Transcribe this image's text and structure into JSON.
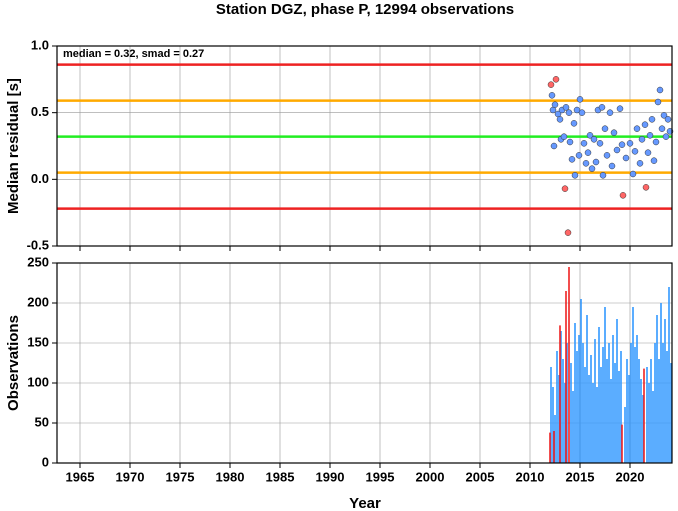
{
  "chart_data": [
    {
      "type": "scatter",
      "title": "Station DGZ, phase P, 12994 observations",
      "annotation": "median = 0.32, smad = 0.27",
      "ylabel": "Median residual [s]",
      "xlim": [
        1962.7,
        2024.2
      ],
      "xticks": [
        1965,
        1970,
        1975,
        1980,
        1985,
        1990,
        1995,
        2000,
        2005,
        2010,
        2015,
        2020
      ],
      "ylim": [
        -0.5,
        1.0
      ],
      "yticks": [
        -0.5,
        {
          "value": 0,
          "label": "0.0"
        },
        0.5,
        {
          "value": 1,
          "label": "1.0"
        }
      ],
      "grid": true,
      "hlines": [
        {
          "value": 0.86,
          "color": "#ee2222"
        },
        {
          "value": 0.59,
          "color": "#ffaa00"
        },
        {
          "value": 0.32,
          "color": "#22ee22"
        },
        {
          "value": 0.05,
          "color": "#ffaa00"
        },
        {
          "value": -0.22,
          "color": "#ee2222"
        }
      ],
      "series": [
        {
          "color": "#6699ff",
          "x": [
            2012.2,
            2012.3,
            2012.4,
            2012.5,
            2012.8,
            2013.0,
            2013.1,
            2013.2,
            2013.4,
            2013.6,
            2013.9,
            2014.0,
            2014.2,
            2014.4,
            2014.5,
            2014.7,
            2014.9,
            2015.0,
            2015.2,
            2015.4,
            2015.6,
            2015.8,
            2016.0,
            2016.2,
            2016.4,
            2016.6,
            2016.8,
            2017.0,
            2017.2,
            2017.3,
            2017.5,
            2017.7,
            2018.0,
            2018.2,
            2018.4,
            2018.7,
            2019.0,
            2019.2,
            2019.6,
            2020.0,
            2020.3,
            2020.5,
            2020.7,
            2021.0,
            2021.2,
            2021.5,
            2021.8,
            2022.0,
            2022.2,
            2022.4,
            2022.6,
            2022.8,
            2023.0,
            2023.2,
            2023.4,
            2023.6,
            2023.8,
            2024.0
          ],
          "values": [
            0.63,
            0.52,
            0.25,
            0.56,
            0.49,
            0.45,
            0.3,
            0.52,
            0.32,
            0.54,
            0.5,
            0.28,
            0.15,
            0.42,
            0.03,
            0.52,
            0.18,
            0.6,
            0.5,
            0.27,
            0.12,
            0.2,
            0.33,
            0.08,
            0.3,
            0.13,
            0.52,
            0.27,
            0.54,
            0.03,
            0.38,
            0.18,
            0.5,
            0.1,
            0.35,
            0.22,
            0.53,
            0.26,
            0.16,
            0.27,
            0.04,
            0.21,
            0.38,
            0.12,
            0.3,
            0.41,
            0.2,
            0.33,
            0.45,
            0.14,
            0.28,
            0.58,
            0.67,
            0.38,
            0.48,
            0.32,
            0.45,
            0.36
          ]
        },
        {
          "color": "#ff6666",
          "x": [
            2012.1,
            2012.6,
            2013.5,
            2013.8,
            2019.3,
            2021.6
          ],
          "values": [
            0.71,
            0.75,
            -0.07,
            -0.4,
            -0.12,
            -0.06
          ]
        }
      ]
    },
    {
      "type": "bar",
      "xlabel": "Year",
      "ylabel": "Observations",
      "xlim": [
        1962.7,
        2024.2
      ],
      "xticks": [
        1965,
        1970,
        1975,
        1980,
        1985,
        1990,
        1995,
        2000,
        2005,
        2010,
        2015,
        2020
      ],
      "ylim": [
        0,
        250
      ],
      "yticks": [
        0,
        50,
        100,
        150,
        200,
        250
      ],
      "grid": true,
      "series": [
        {
          "color": "#3399ff",
          "x": [
            2012.1,
            2012.3,
            2012.5,
            2012.7,
            2012.9,
            2013.1,
            2013.3,
            2013.5,
            2013.7,
            2014.1,
            2014.3,
            2014.5,
            2014.7,
            2014.9,
            2015.1,
            2015.3,
            2015.5,
            2015.7,
            2015.9,
            2016.1,
            2016.3,
            2016.5,
            2016.7,
            2016.9,
            2017.1,
            2017.3,
            2017.5,
            2017.7,
            2017.9,
            2018.1,
            2018.3,
            2018.5,
            2018.7,
            2018.9,
            2019.1,
            2019.5,
            2019.7,
            2019.9,
            2020.1,
            2020.3,
            2020.5,
            2020.7,
            2020.9,
            2021.1,
            2021.3,
            2021.7,
            2021.9,
            2022.1,
            2022.3,
            2022.5,
            2022.7,
            2022.9,
            2023.1,
            2023.3,
            2023.5,
            2023.7,
            2023.9,
            2024.1
          ],
          "values": [
            120,
            95,
            60,
            140,
            110,
            165,
            130,
            100,
            150,
            125,
            90,
            175,
            140,
            160,
            205,
            150,
            120,
            185,
            110,
            135,
            100,
            155,
            95,
            170,
            120,
            145,
            195,
            130,
            150,
            105,
            160,
            125,
            180,
            115,
            140,
            70,
            130,
            110,
            150,
            195,
            145,
            160,
            130,
            105,
            85,
            120,
            100,
            130,
            90,
            150,
            185,
            130,
            200,
            150,
            180,
            140,
            220,
            125
          ]
        },
        {
          "color": "#ee2222",
          "x": [
            2012.0,
            2012.4,
            2013.0,
            2013.6,
            2013.9,
            2019.2,
            2021.4
          ],
          "values": [
            38,
            40,
            172,
            215,
            245,
            48,
            118
          ]
        }
      ]
    }
  ]
}
